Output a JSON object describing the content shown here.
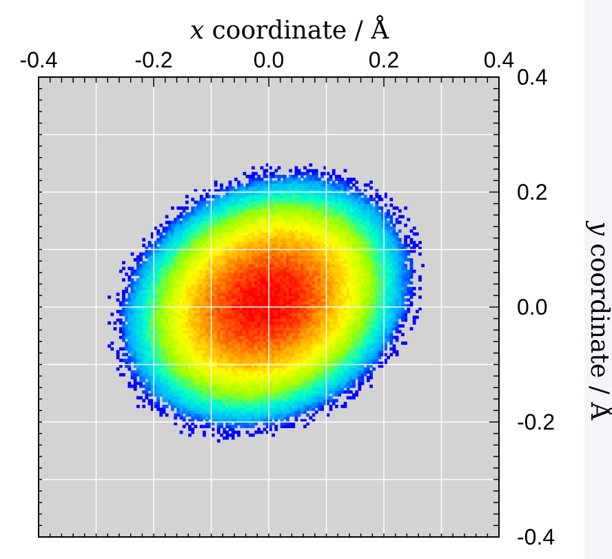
{
  "chart_data": {
    "type": "heatmap",
    "title": "",
    "xlabel": "x coordinate / Å",
    "xlabel_var": "x",
    "xlabel_rest": " coordinate / Å",
    "ylabel": "y coordinate / Å",
    "ylabel_var": "y",
    "ylabel_rest": " coordinate / Å",
    "xlim": [
      -0.4,
      0.4
    ],
    "ylim": [
      -0.4,
      0.4
    ],
    "x_ticks": [
      -0.4,
      -0.2,
      0.0,
      0.2,
      0.4
    ],
    "y_ticks": [
      -0.4,
      -0.2,
      0.0,
      0.2,
      0.4
    ],
    "x_tick_labels": [
      "-0.4",
      "-0.2",
      "0.0",
      "0.2",
      "0.4"
    ],
    "y_tick_labels": [
      "-0.4",
      "-0.2",
      "0.0",
      "0.2",
      "0.4"
    ],
    "x_axis_position": "top",
    "y_axis_position": "right",
    "grid": true,
    "grid_step": 0.1,
    "minor_tick_step": 0.02,
    "background_color": "#d3d3d3",
    "grid_color": "#ffffff",
    "colormap": [
      "#0000ff",
      "#00b4ff",
      "#00ffcc",
      "#a0ff00",
      "#ffff00",
      "#ff9600",
      "#ff0000"
    ],
    "distribution": {
      "center": [
        -0.005,
        0.01
      ],
      "major_axis_angle_deg": -28,
      "sigma_major": 0.095,
      "sigma_minor": 0.075,
      "peak_density": 1.0,
      "threshold_density": 0.018,
      "bin_size": 0.01
    }
  }
}
